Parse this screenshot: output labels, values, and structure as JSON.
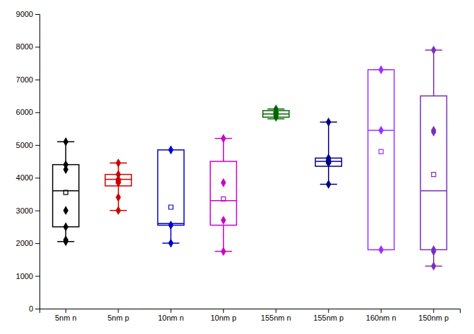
{
  "chart_data": {
    "type": "box",
    "categories": [
      "5nm n",
      "5nm p",
      "10nm n",
      "10nm p",
      "155nm n",
      "155nm p",
      "160nm n",
      "150nm p"
    ],
    "colors": [
      "#000000",
      "#cc0000",
      "#0000cc",
      "#cc00cc",
      "#006400",
      "#000080",
      "#9B30FF",
      "#7B2FBE"
    ],
    "boxes": [
      {
        "whislo": 2050,
        "q1": 2500,
        "med": 3600,
        "q3": 4400,
        "whishi": 5100,
        "mean": 3550,
        "pts": [
          5100,
          4400,
          4250,
          3000,
          2500,
          2050,
          2100
        ]
      },
      {
        "whislo": 3000,
        "q1": 3750,
        "med": 3950,
        "q3": 4100,
        "whishi": 4450,
        "mean": 3900,
        "pts": [
          4450,
          4100,
          3950,
          3900,
          3850,
          3400,
          3000
        ]
      },
      {
        "whislo": 2000,
        "q1": 2550,
        "med": 2600,
        "q3": 4850,
        "whishi": 4850,
        "mean": 3100,
        "pts": [
          4850,
          2550,
          2000
        ]
      },
      {
        "whislo": 1750,
        "q1": 2550,
        "med": 3300,
        "q3": 4500,
        "whishi": 5200,
        "mean": 3350,
        "pts": [
          5200,
          3850,
          2700,
          1750
        ]
      },
      {
        "whislo": 5800,
        "q1": 5850,
        "med": 5950,
        "q3": 6050,
        "whishi": 6100,
        "mean": 5950,
        "pts": [
          6100,
          6000,
          5950,
          5850
        ]
      },
      {
        "whislo": 3800,
        "q1": 4350,
        "med": 4500,
        "q3": 4600,
        "whishi": 5700,
        "mean": 4500,
        "pts": [
          5700,
          4600,
          4500,
          4450,
          3800
        ]
      },
      {
        "whislo": 1800,
        "q1": 1800,
        "med": 5450,
        "q3": 7300,
        "whishi": 7300,
        "mean": 4800,
        "pts": [
          7300,
          5450,
          1800
        ]
      },
      {
        "whislo": 1300,
        "q1": 1800,
        "med": 3600,
        "q3": 6500,
        "whishi": 7900,
        "mean": 4100,
        "pts": [
          7900,
          5450,
          5400,
          1800,
          1750,
          1300
        ]
      }
    ],
    "ylim": [
      0,
      9000
    ],
    "yticks": [
      0,
      1000,
      2000,
      3000,
      4000,
      5000,
      6000,
      7000,
      8000,
      9000
    ],
    "grid": false
  }
}
